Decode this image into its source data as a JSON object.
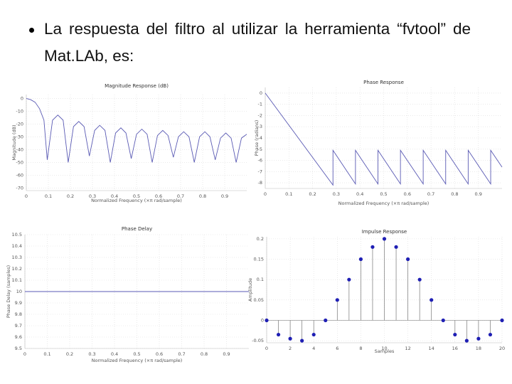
{
  "slide": {
    "bullet": "La respuesta del filtro al utilizar la herramienta “fvtool” de Mat.LAb, es:"
  },
  "chart_data": [
    {
      "type": "line",
      "title": "Magnitude Response (dB)",
      "xlabel": "Normalized Frequency (×π rad/sample)",
      "ylabel": "Magnitude (dB)",
      "x": [
        0,
        0.02,
        0.04,
        0.06,
        0.08,
        0.095,
        0.119,
        0.143,
        0.167,
        0.19,
        0.214,
        0.238,
        0.262,
        0.286,
        0.31,
        0.333,
        0.357,
        0.381,
        0.405,
        0.429,
        0.452,
        0.476,
        0.5,
        0.524,
        0.548,
        0.571,
        0.595,
        0.619,
        0.643,
        0.667,
        0.69,
        0.714,
        0.738,
        0.762,
        0.786,
        0.81,
        0.833,
        0.857,
        0.881,
        0.905,
        0.929,
        0.952,
        0.976,
        1
      ],
      "values": [
        0,
        -1,
        -3,
        -8,
        -17,
        -48,
        -17,
        -13,
        -17,
        -50,
        -22,
        -18,
        -22,
        -45,
        -25,
        -21,
        -25,
        -50,
        -27,
        -23,
        -27,
        -47,
        -28,
        -24,
        -28,
        -50,
        -29,
        -25,
        -29,
        -46,
        -30,
        -26,
        -30,
        -50,
        -30,
        -26,
        -30,
        -48,
        -31,
        -27,
        -31,
        -50,
        -31,
        -28
      ],
      "color": "#5a5ab4",
      "xlim": [
        0,
        1
      ],
      "ylim": [
        -72,
        3
      ],
      "xticks": [
        0,
        0.1,
        0.2,
        0.3,
        0.4,
        0.5,
        0.6,
        0.7,
        0.8,
        0.9
      ],
      "yticks": [
        0,
        -10,
        -20,
        -30,
        -40,
        -50,
        -60,
        -70
      ],
      "grid": true
    },
    {
      "type": "line",
      "title": "Phase Response",
      "xlabel": "Normalized Frequency (×π rad/sample)",
      "ylabel": "Phase (radians)",
      "x": [
        0,
        0.286,
        0.286,
        0.381,
        0.381,
        0.476,
        0.476,
        0.571,
        0.571,
        0.667,
        0.667,
        0.762,
        0.762,
        0.857,
        0.857,
        0.952,
        0.952,
        1
      ],
      "values": [
        0,
        -8.2,
        -5.1,
        -8.1,
        -5.1,
        -8.1,
        -5.1,
        -8.1,
        -5.1,
        -8.1,
        -5.1,
        -8.1,
        -5.1,
        -8.1,
        -5.1,
        -8.1,
        -5.1,
        -6.6
      ],
      "color": "#5a5ab4",
      "xlim": [
        0,
        1
      ],
      "ylim": [
        -8.5,
        0.5
      ],
      "xticks": [
        0,
        0.1,
        0.2,
        0.3,
        0.4,
        0.5,
        0.6,
        0.7,
        0.8,
        0.9
      ],
      "yticks": [
        0,
        -1,
        -2,
        -3,
        -4,
        -5,
        -6,
        -7,
        -8
      ],
      "grid": true
    },
    {
      "type": "line",
      "title": "Phase Delay",
      "xlabel": "Normalized Frequency (×π rad/sample)",
      "ylabel": "Phase Delay (samples)",
      "x": [
        0,
        1
      ],
      "values": [
        10,
        10
      ],
      "color": "#5a5ab4",
      "xlim": [
        0,
        1
      ],
      "ylim": [
        9.5,
        10.5
      ],
      "xticks": [
        0,
        0.1,
        0.2,
        0.3,
        0.4,
        0.5,
        0.6,
        0.7,
        0.8,
        0.9
      ],
      "yticks": [
        10.5,
        10.4,
        10.3,
        10.2,
        10.1,
        10,
        9.9,
        9.8,
        9.7,
        9.6,
        9.5
      ],
      "grid": true
    },
    {
      "type": "stem",
      "title": "Impulse Response",
      "xlabel": "Samples",
      "ylabel": "Amplitude",
      "x": [
        0,
        1,
        2,
        3,
        4,
        5,
        6,
        7,
        8,
        9,
        10,
        11,
        12,
        13,
        14,
        15,
        16,
        17,
        18,
        19,
        20
      ],
      "values": [
        0,
        -0.035,
        -0.045,
        -0.05,
        -0.035,
        0,
        0.05,
        0.1,
        0.15,
        0.18,
        0.2,
        0.18,
        0.15,
        0.1,
        0.05,
        0,
        -0.035,
        -0.05,
        -0.045,
        -0.035,
        0
      ],
      "color": "#1f1fb4",
      "xlim": [
        0,
        20
      ],
      "ylim": [
        -0.055,
        0.205
      ],
      "xticks": [
        0,
        2,
        4,
        6,
        8,
        10,
        12,
        14,
        16,
        18,
        20
      ],
      "yticks": [
        0.2,
        0.15,
        0.1,
        0.05,
        0,
        -0.05
      ],
      "grid": true
    }
  ]
}
